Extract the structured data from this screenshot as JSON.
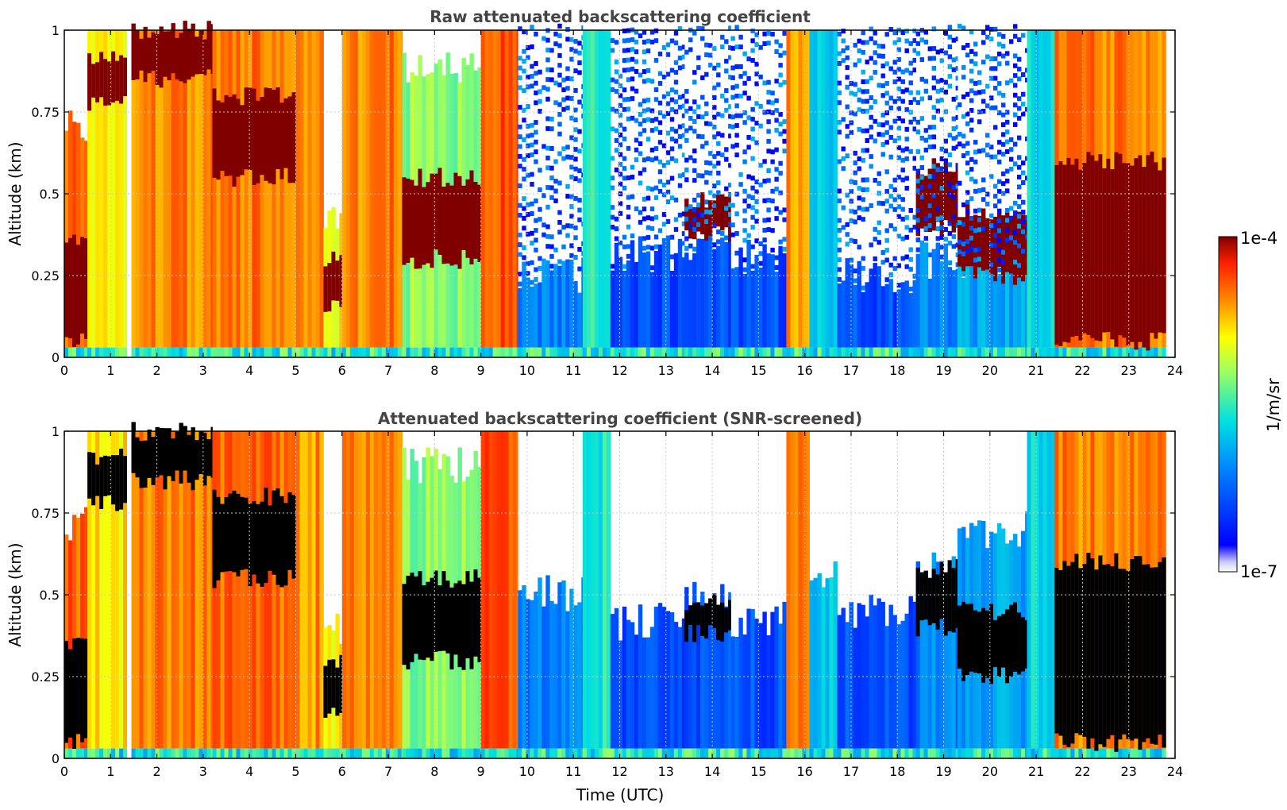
{
  "chart_data": [
    {
      "type": "heatmap",
      "title": "Raw attenuated backscattering coefficient",
      "xlabel": "",
      "ylabel": "Altitude (km)",
      "xlim": [
        0,
        24
      ],
      "ylim": [
        0,
        1
      ],
      "xticks": [
        "0",
        "1",
        "2",
        "3",
        "4",
        "5",
        "6",
        "7",
        "8",
        "9",
        "10",
        "11",
        "12",
        "13",
        "14",
        "15",
        "16",
        "17",
        "18",
        "19",
        "20",
        "21",
        "22",
        "23",
        "24"
      ],
      "yticks": [
        "0",
        "0.25",
        "0.5",
        "0.75",
        "1"
      ],
      "grid": true,
      "screened": false,
      "colorscale": "jet",
      "segments": [
        {
          "x0": 0.0,
          "x1": 0.5,
          "top": 0.72,
          "v": 0.85,
          "cloud": [
            0.05,
            0.35
          ]
        },
        {
          "x0": 0.5,
          "x1": 1.35,
          "top": 1.0,
          "v": 0.72,
          "cloud": [
            0.78,
            0.92
          ]
        },
        {
          "x0": 1.35,
          "x1": 1.45,
          "top": 0.0,
          "v": 0.0
        },
        {
          "x0": 1.45,
          "x1": 3.2,
          "top": 1.0,
          "v": 0.82,
          "cloud": [
            0.85,
            1.0
          ]
        },
        {
          "x0": 3.2,
          "x1": 5.0,
          "top": 1.0,
          "v": 0.84,
          "cloud": [
            0.55,
            0.8
          ]
        },
        {
          "x0": 5.0,
          "x1": 5.6,
          "top": 1.0,
          "v": 0.8
        },
        {
          "x0": 5.6,
          "x1": 6.0,
          "top": 0.4,
          "v": 0.7,
          "cloud": [
            0.15,
            0.3
          ]
        },
        {
          "x0": 6.0,
          "x1": 7.3,
          "top": 1.0,
          "v": 0.82
        },
        {
          "x0": 7.3,
          "x1": 9.0,
          "top": 0.9,
          "v": 0.58,
          "cloud": [
            0.3,
            0.55
          ]
        },
        {
          "x0": 9.0,
          "x1": 9.8,
          "top": 1.0,
          "v": 0.86
        },
        {
          "x0": 9.8,
          "x1": 11.2,
          "top": 0.25,
          "v": 0.3,
          "noise": 1.0
        },
        {
          "x0": 11.2,
          "x1": 11.8,
          "top": 1.0,
          "v": 0.48
        },
        {
          "x0": 11.8,
          "x1": 13.4,
          "top": 0.32,
          "v": 0.22,
          "noise": 1.0
        },
        {
          "x0": 13.4,
          "x1": 14.4,
          "top": 0.35,
          "v": 0.22,
          "noise": 1.0,
          "cloud": [
            0.38,
            0.48
          ]
        },
        {
          "x0": 14.4,
          "x1": 15.6,
          "top": 0.3,
          "v": 0.22,
          "noise": 1.0
        },
        {
          "x0": 15.6,
          "x1": 16.1,
          "top": 1.0,
          "v": 0.8
        },
        {
          "x0": 16.1,
          "x1": 16.7,
          "top": 1.0,
          "v": 0.4
        },
        {
          "x0": 16.7,
          "x1": 18.4,
          "top": 0.25,
          "v": 0.22,
          "noise": 1.0
        },
        {
          "x0": 18.4,
          "x1": 19.3,
          "top": 0.3,
          "v": 0.3,
          "noise": 1.0,
          "cloud": [
            0.4,
            0.58
          ]
        },
        {
          "x0": 19.3,
          "x1": 20.8,
          "top": 0.3,
          "v": 0.35,
          "noise": 1.0,
          "cloud": [
            0.25,
            0.45
          ]
        },
        {
          "x0": 20.8,
          "x1": 21.4,
          "top": 1.0,
          "v": 0.45
        },
        {
          "x0": 21.4,
          "x1": 23.8,
          "top": 1.0,
          "v": 0.82,
          "cloud": [
            0.05,
            0.6
          ]
        }
      ]
    },
    {
      "type": "heatmap",
      "title": "Attenuated backscattering coefficient (SNR-screened)",
      "xlabel": "Time (UTC)",
      "ylabel": "Altitude (km)",
      "xlim": [
        0,
        24
      ],
      "ylim": [
        0,
        1
      ],
      "xticks": [
        "0",
        "1",
        "2",
        "3",
        "4",
        "5",
        "6",
        "7",
        "8",
        "9",
        "10",
        "11",
        "12",
        "13",
        "14",
        "15",
        "16",
        "17",
        "18",
        "19",
        "20",
        "21",
        "22",
        "23",
        "24"
      ],
      "yticks": [
        "0",
        "0.25",
        "0.5",
        "0.75",
        "1"
      ],
      "grid": true,
      "screened": true,
      "colorscale": "jet",
      "segments": [
        {
          "x0": 0.0,
          "x1": 0.5,
          "top": 0.72,
          "v": 0.85,
          "cloud": [
            0.05,
            0.35
          ]
        },
        {
          "x0": 0.5,
          "x1": 1.35,
          "top": 1.0,
          "v": 0.72,
          "cloud": [
            0.78,
            0.92
          ]
        },
        {
          "x0": 1.35,
          "x1": 1.45,
          "top": 0.0,
          "v": 0.0
        },
        {
          "x0": 1.45,
          "x1": 3.2,
          "top": 1.0,
          "v": 0.82,
          "cloud": [
            0.85,
            1.0
          ]
        },
        {
          "x0": 3.2,
          "x1": 5.0,
          "top": 1.0,
          "v": 0.84,
          "cloud": [
            0.55,
            0.8
          ]
        },
        {
          "x0": 5.0,
          "x1": 5.6,
          "top": 1.0,
          "v": 0.8
        },
        {
          "x0": 5.6,
          "x1": 6.0,
          "top": 0.4,
          "v": 0.7,
          "cloud": [
            0.15,
            0.3
          ]
        },
        {
          "x0": 6.0,
          "x1": 7.3,
          "top": 1.0,
          "v": 0.82
        },
        {
          "x0": 7.3,
          "x1": 9.0,
          "top": 0.9,
          "v": 0.58,
          "cloud": [
            0.3,
            0.55
          ]
        },
        {
          "x0": 9.0,
          "x1": 9.8,
          "top": 1.0,
          "v": 0.86
        },
        {
          "x0": 9.8,
          "x1": 11.2,
          "top": 0.5,
          "v": 0.3
        },
        {
          "x0": 11.2,
          "x1": 11.8,
          "top": 1.0,
          "v": 0.48
        },
        {
          "x0": 11.8,
          "x1": 13.4,
          "top": 0.42,
          "v": 0.22
        },
        {
          "x0": 13.4,
          "x1": 14.4,
          "top": 0.5,
          "v": 0.22,
          "cloud": [
            0.38,
            0.48
          ]
        },
        {
          "x0": 14.4,
          "x1": 15.6,
          "top": 0.42,
          "v": 0.22
        },
        {
          "x0": 15.6,
          "x1": 16.1,
          "top": 1.0,
          "v": 0.8
        },
        {
          "x0": 16.1,
          "x1": 16.7,
          "top": 0.55,
          "v": 0.4
        },
        {
          "x0": 16.7,
          "x1": 18.4,
          "top": 0.45,
          "v": 0.22
        },
        {
          "x0": 18.4,
          "x1": 19.3,
          "top": 0.58,
          "v": 0.3,
          "cloud": [
            0.4,
            0.58
          ]
        },
        {
          "x0": 19.3,
          "x1": 20.8,
          "top": 0.7,
          "v": 0.35,
          "cloud": [
            0.25,
            0.45
          ]
        },
        {
          "x0": 20.8,
          "x1": 21.4,
          "top": 1.0,
          "v": 0.45
        },
        {
          "x0": 21.4,
          "x1": 23.8,
          "top": 1.0,
          "v": 0.82,
          "cloud": [
            0.05,
            0.6
          ]
        }
      ]
    }
  ],
  "colorbar": {
    "max_label": "1e-4",
    "min_label": "1e-7",
    "unit_label": "1/m/sr"
  },
  "colors": {
    "title": "#444444",
    "grid": "#c8c8c8",
    "cloud_raw": "#800000",
    "cloud_screened": "#000000"
  }
}
